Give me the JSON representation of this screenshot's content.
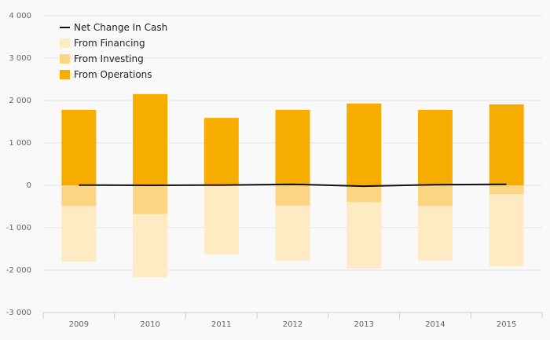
{
  "chart_data": {
    "type": "bar",
    "stacked": true,
    "categories": [
      "2009",
      "2010",
      "2011",
      "2012",
      "2013",
      "2014",
      "2015"
    ],
    "series": [
      {
        "name": "From Operations",
        "kind": "bar",
        "color": "#f7ac00",
        "values": [
          1780,
          2150,
          1590,
          1780,
          1930,
          1780,
          1910
        ]
      },
      {
        "name": "From Investing",
        "kind": "bar",
        "color": "#fcd582",
        "values": [
          -490,
          -680,
          -15,
          -480,
          -400,
          -490,
          -210
        ]
      },
      {
        "name": "From Financing",
        "kind": "bar",
        "color": "#feebc3",
        "values": [
          -1310,
          -1490,
          -1610,
          -1300,
          -1560,
          -1290,
          -1700
        ]
      },
      {
        "name": "Net Change In Cash",
        "kind": "line",
        "color": "#111111",
        "values": [
          5,
          0,
          5,
          25,
          -20,
          15,
          25
        ]
      }
    ],
    "ylim": [
      -3000,
      4000
    ],
    "yticks": [
      4000,
      3000,
      2000,
      1000,
      0,
      -1000,
      -2000,
      -3000
    ],
    "ytick_labels": [
      "4 000",
      "3 000",
      "2 000",
      "1 000",
      "0",
      "-1 000",
      "-2 000",
      "-3 000"
    ],
    "grid": true,
    "legend_position": "top-left",
    "legend": [
      {
        "name": "Net Change In Cash",
        "marker": "line",
        "color": "#111111"
      },
      {
        "name": "From Financing",
        "marker": "square",
        "color": "#feebc3"
      },
      {
        "name": "From Investing",
        "marker": "square",
        "color": "#fcd582"
      },
      {
        "name": "From Operations",
        "marker": "square",
        "color": "#f7ac00"
      }
    ]
  }
}
